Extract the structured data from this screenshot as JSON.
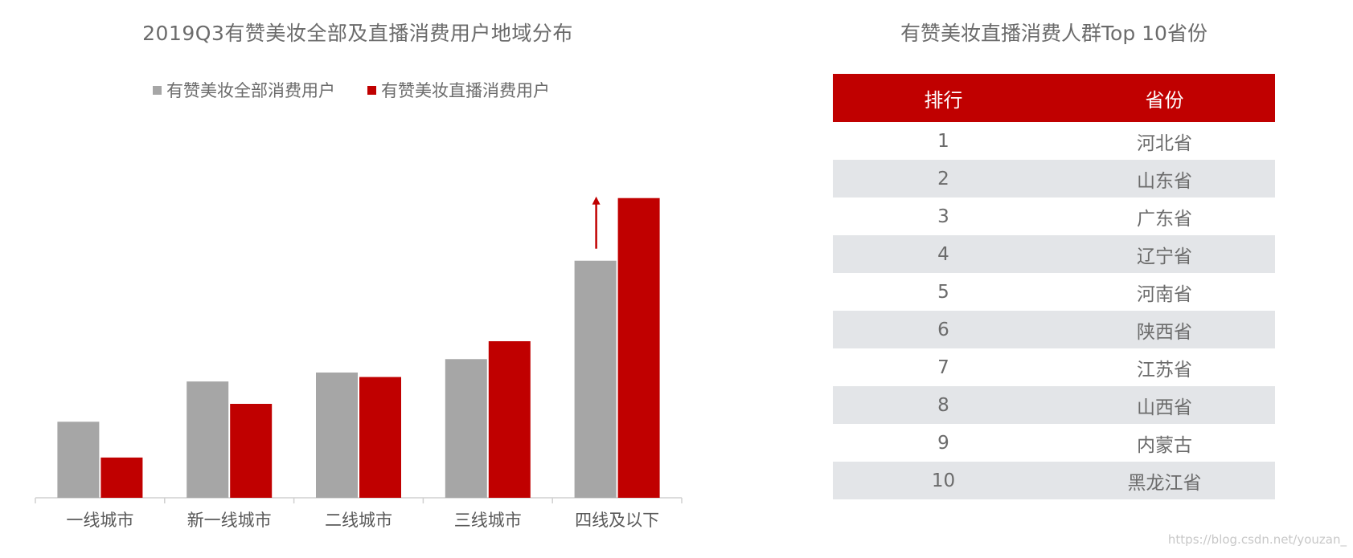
{
  "chart_data": {
    "type": "bar",
    "title": "2019Q3有赞美妆全部及直播消费用户地域分布",
    "categories": [
      "一线城市",
      "新一线城市",
      "二线城市",
      "三线城市",
      "四线及以下"
    ],
    "series": [
      {
        "name": "有赞美妆全部消费用户",
        "color": "#a6a6a6",
        "values": [
          17,
          26,
          28,
          31,
          53
        ]
      },
      {
        "name": "有赞美妆直播消费用户",
        "color": "#c00000",
        "values": [
          9,
          21,
          27,
          35,
          67
        ]
      }
    ],
    "ylim": [
      0,
      70
    ],
    "grid": false,
    "legend_position": "top",
    "annotation": "up-arrow-above-last-category"
  },
  "table": {
    "title": "有赞美妆直播消费人群Top 10省份",
    "headers": [
      "排行",
      "省份"
    ],
    "header_color": "#c00000",
    "rows": [
      {
        "rank": "1",
        "province": "河北省"
      },
      {
        "rank": "2",
        "province": "山东省"
      },
      {
        "rank": "3",
        "province": "广东省"
      },
      {
        "rank": "4",
        "province": "辽宁省"
      },
      {
        "rank": "5",
        "province": "河南省"
      },
      {
        "rank": "6",
        "province": "陕西省"
      },
      {
        "rank": "7",
        "province": "江苏省"
      },
      {
        "rank": "8",
        "province": "山西省"
      },
      {
        "rank": "9",
        "province": "内蒙古"
      },
      {
        "rank": "10",
        "province": "黑龙江省"
      }
    ]
  },
  "watermark": "https://blog.csdn.net/youzan_"
}
